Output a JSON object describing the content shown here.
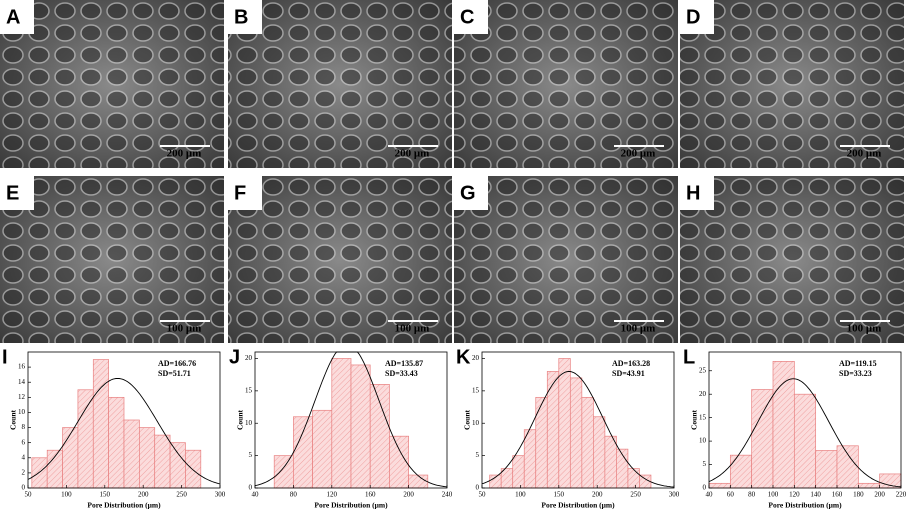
{
  "panels": [
    {
      "label": "A",
      "scale_bar": "200 μm"
    },
    {
      "label": "B",
      "scale_bar": "200 μm"
    },
    {
      "label": "C",
      "scale_bar": "200 μm"
    },
    {
      "label": "D",
      "scale_bar": "200 μm"
    },
    {
      "label": "E",
      "scale_bar": "100 μm"
    },
    {
      "label": "F",
      "scale_bar": "100 μm"
    },
    {
      "label": "G",
      "scale_bar": "100 μm"
    },
    {
      "label": "H",
      "scale_bar": "100 μm"
    }
  ],
  "chart_data": [
    {
      "type": "histogram",
      "panel_label": "I",
      "x_label": "Pore Distribution (μm)",
      "y_label": "Count",
      "bins": [
        55,
        75,
        95,
        115,
        135,
        155,
        175,
        195,
        215,
        235,
        255,
        275
      ],
      "values": [
        4,
        5,
        8,
        13,
        17,
        12,
        9,
        8,
        7,
        6,
        5
      ],
      "xlim": [
        50,
        300
      ],
      "xticks": [
        50,
        100,
        150,
        200,
        250,
        300
      ],
      "ylim": [
        0,
        18
      ],
      "yticks": [
        0,
        2,
        4,
        6,
        8,
        10,
        12,
        14,
        16
      ],
      "annotations": [
        "AD=166.76",
        "SD=51.71"
      ],
      "fit": {
        "mean": 166.76,
        "sd": 51.71
      }
    },
    {
      "type": "histogram",
      "panel_label": "J",
      "x_label": "Pore Distribution (μm)",
      "y_label": "Count",
      "bins": [
        60,
        80,
        100,
        120,
        140,
        160,
        180,
        200,
        220
      ],
      "values": [
        5,
        11,
        12,
        20,
        19,
        16,
        8,
        2
      ],
      "xlim": [
        40,
        240
      ],
      "xticks": [
        40,
        80,
        120,
        160,
        200,
        240
      ],
      "ylim": [
        0,
        21
      ],
      "yticks": [
        0,
        5,
        10,
        15,
        20
      ],
      "annotations": [
        "AD=135.87",
        "SD=33.43"
      ],
      "fit": {
        "mean": 135.87,
        "sd": 33.43
      }
    },
    {
      "type": "histogram",
      "panel_label": "K",
      "x_label": "Pore Distribution (μm)",
      "y_label": "Count",
      "bins": [
        60,
        75,
        90,
        105,
        120,
        135,
        150,
        165,
        180,
        195,
        210,
        225,
        240,
        255,
        270
      ],
      "values": [
        2,
        3,
        5,
        9,
        14,
        18,
        20,
        17,
        14,
        11,
        8,
        6,
        3,
        2
      ],
      "xlim": [
        50,
        300
      ],
      "xticks": [
        50,
        100,
        150,
        200,
        250,
        300
      ],
      "ylim": [
        0,
        21
      ],
      "yticks": [
        0,
        5,
        10,
        15,
        20
      ],
      "annotations": [
        "AD=163.28",
        "SD=43.91"
      ],
      "fit": {
        "mean": 163.28,
        "sd": 43.91
      }
    },
    {
      "type": "histogram",
      "panel_label": "L",
      "x_label": "Pore Distribution (μm)",
      "y_label": "Count",
      "bins": [
        40,
        60,
        80,
        100,
        120,
        140,
        160,
        180,
        200,
        220
      ],
      "values": [
        1,
        7,
        21,
        27,
        20,
        8,
        9,
        1,
        3
      ],
      "xlim": [
        40,
        220
      ],
      "xticks": [
        40,
        60,
        80,
        100,
        120,
        140,
        160,
        180,
        200,
        220
      ],
      "ylim": [
        0,
        29
      ],
      "yticks": [
        0,
        5,
        10,
        15,
        20,
        25
      ],
      "annotations": [
        "AD=119.15",
        "SD=33.23"
      ],
      "fit": {
        "mean": 119.15,
        "sd": 33.23
      }
    }
  ]
}
